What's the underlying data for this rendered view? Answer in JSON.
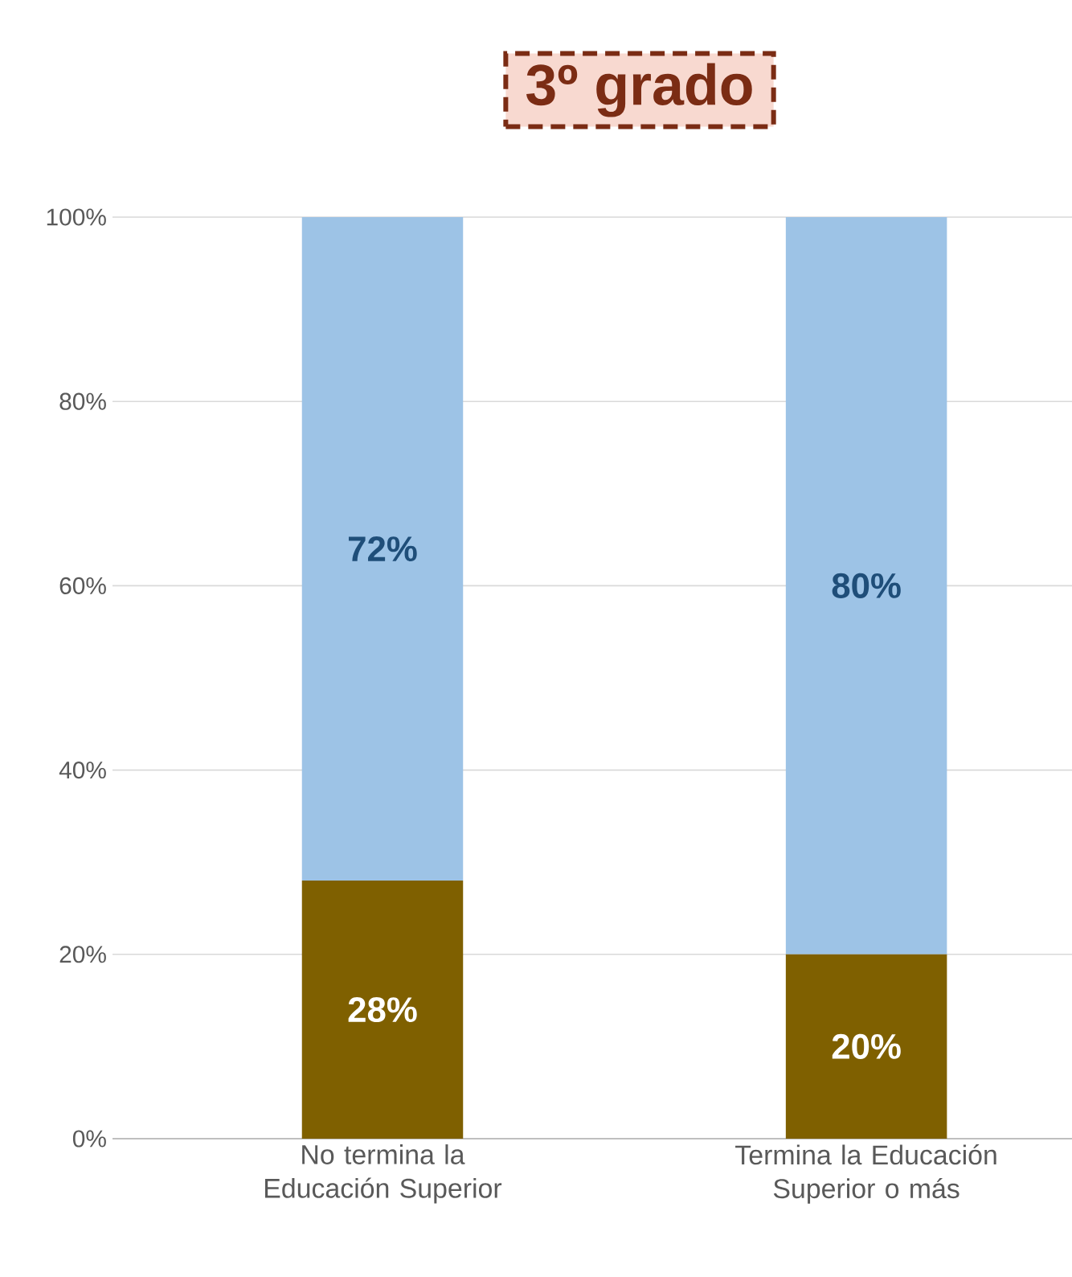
{
  "chart_data": {
    "type": "bar",
    "title": "3º grado",
    "stacked": true,
    "grid": "y",
    "categories": [
      "No termina la Educación Superior",
      "Termina la Educación Superior o más"
    ],
    "series": [
      {
        "color": "#7f6000",
        "values": [
          28,
          20
        ],
        "value_labels": [
          "28%",
          "20%"
        ]
      },
      {
        "color": "#9dc3e6",
        "values": [
          72,
          80
        ],
        "value_labels": [
          "72%",
          "80%"
        ]
      }
    ],
    "ylim": [
      0,
      100
    ],
    "yticks": [
      {
        "value": 0,
        "label": "0%"
      },
      {
        "value": 20,
        "label": "20%"
      },
      {
        "value": 40,
        "label": "40%"
      },
      {
        "value": 60,
        "label": "60%"
      },
      {
        "value": 80,
        "label": "80%"
      },
      {
        "value": 100,
        "label": "100%"
      }
    ]
  }
}
